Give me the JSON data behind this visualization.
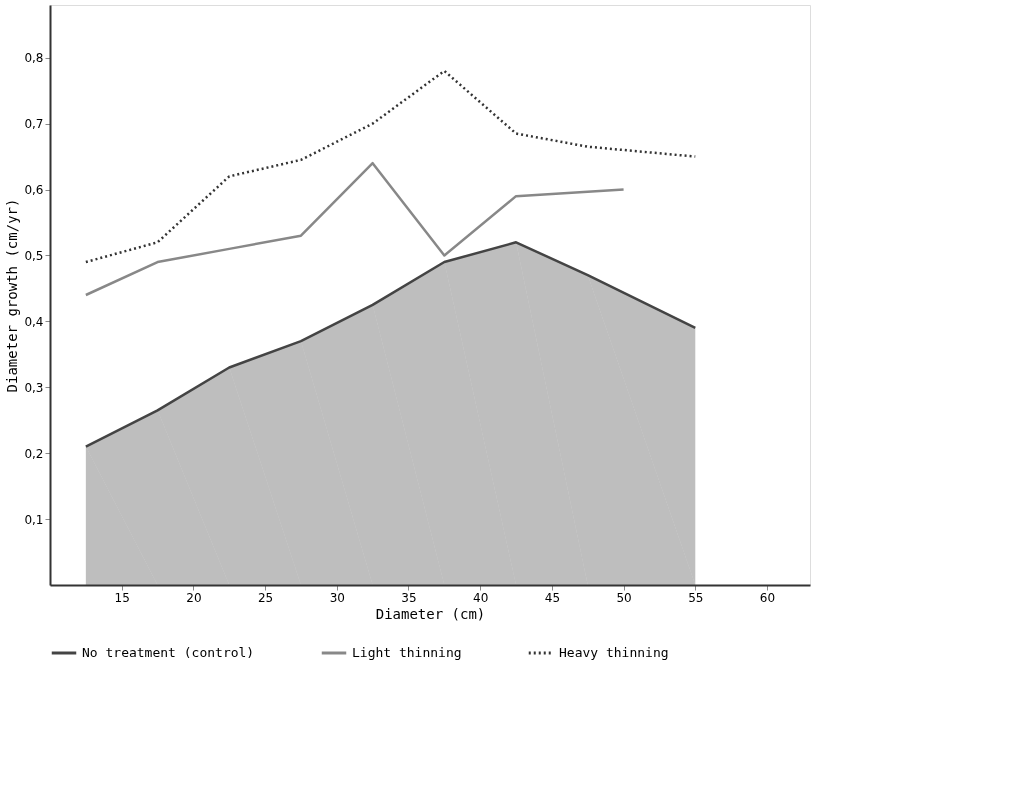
{
  "chart_data": {
    "type": "line",
    "xlabel": "Diameter (cm)",
    "ylabel": "Diameter growth (cm/yr)",
    "xlim": [
      10,
      63
    ],
    "xticks": [
      15,
      20,
      25,
      30,
      35,
      40,
      45,
      50,
      55,
      60
    ],
    "ylim": [
      0,
      0.88
    ],
    "yticks": [
      {
        "value": 0.1,
        "label": "0,1"
      },
      {
        "value": 0.2,
        "label": "0,2"
      },
      {
        "value": 0.3,
        "label": "0,3"
      },
      {
        "value": 0.4,
        "label": "0,4"
      },
      {
        "value": 0.5,
        "label": "0,5"
      },
      {
        "value": 0.6,
        "label": "0,6"
      },
      {
        "value": 0.7,
        "label": "0,7"
      },
      {
        "value": 0.8,
        "label": "0,8"
      }
    ],
    "grid": false,
    "legend": "bottom",
    "marker": "none",
    "series": [
      {
        "name": "No treatment (control)",
        "type": "area",
        "color": "#444444",
        "line_style": "solid",
        "x": [
          12.5,
          17.5,
          22.5,
          27.5,
          32.5,
          37.5,
          42.5,
          47.5,
          55
        ],
        "values": [
          0.21,
          0.265,
          0.33,
          0.37,
          0.425,
          0.49,
          0.52,
          0.47,
          0.39
        ]
      },
      {
        "name": "Light thinning",
        "type": "line",
        "color": "#888888",
        "line_style": "solid",
        "x": [
          12.5,
          17.5,
          22.5,
          27.5,
          32.5,
          37.5,
          42.5,
          50
        ],
        "values": [
          0.44,
          0.49,
          0.51,
          0.53,
          0.64,
          0.5,
          0.59,
          0.6
        ]
      },
      {
        "name": "Heavy thinning",
        "type": "line",
        "color": "#333333",
        "line_style": "dotted",
        "x": [
          12.5,
          17.5,
          22.5,
          27.5,
          32.5,
          37.5,
          42.5,
          47.5,
          55
        ],
        "values": [
          0.49,
          0.52,
          0.62,
          0.645,
          0.7,
          0.78,
          0.685,
          0.665,
          0.65
        ]
      }
    ]
  }
}
